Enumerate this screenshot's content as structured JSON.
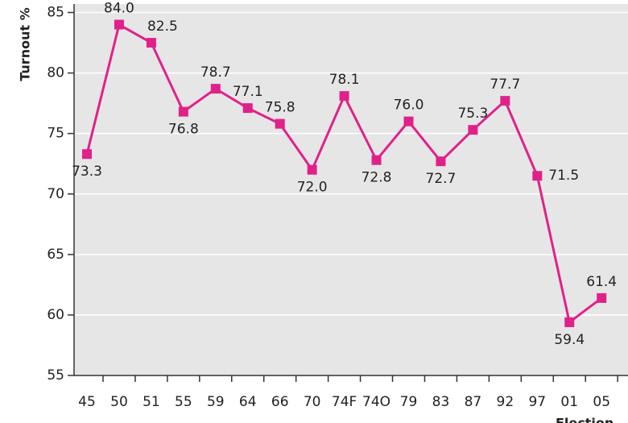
{
  "chart_data": {
    "type": "line",
    "y_label": "Turnout %",
    "x_label": "Election",
    "categories": [
      "45",
      "50",
      "51",
      "55",
      "59",
      "64",
      "66",
      "70",
      "74F",
      "74O",
      "79",
      "83",
      "87",
      "92",
      "97",
      "01",
      "05"
    ],
    "series": [
      {
        "name": "Turnout",
        "color": "#e0218a",
        "values": [
          73.3,
          84.0,
          82.5,
          76.8,
          78.7,
          77.1,
          75.8,
          72.0,
          78.1,
          72.8,
          76.0,
          72.7,
          75.3,
          77.7,
          71.5,
          59.4,
          61.4
        ],
        "value_labels": [
          "73.3",
          "84.0",
          "82.5",
          "76.8",
          "78.7",
          "77.1",
          "75.8",
          "72.0",
          "78.1",
          "72.8",
          "76.0",
          "72.7",
          "75.3",
          "77.7",
          "71.5",
          "59.4",
          "61.4"
        ]
      }
    ],
    "ylim": [
      55,
      85.7
    ],
    "yticks": [
      55,
      60,
      65,
      70,
      75,
      80,
      85
    ],
    "grid": true
  }
}
